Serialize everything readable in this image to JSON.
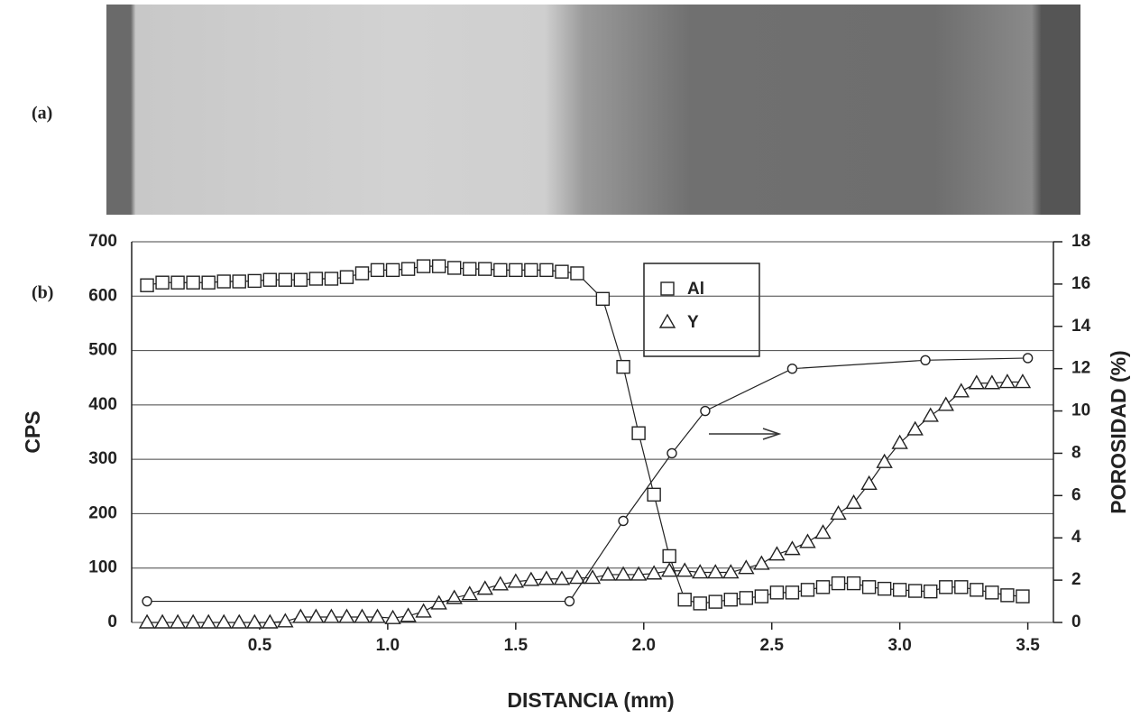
{
  "panel_labels": [
    "(a)",
    "(b)"
  ],
  "chart_data": {
    "type": "scatter",
    "xlabel": "DISTANCIA (mm)",
    "ylabel": "CPS",
    "y2label": "POROSIDAD (%)",
    "xlim": [
      0,
      3.6
    ],
    "ylim": [
      0,
      700
    ],
    "y2lim": [
      0,
      18
    ],
    "xticks": [
      0.5,
      {
        "value": 1,
        "label": "1.0"
      },
      1.5,
      {
        "value": 2,
        "label": "2.0"
      },
      2.5,
      {
        "value": 3,
        "label": "3.0"
      },
      3.5
    ],
    "yticks": [
      0,
      100,
      200,
      300,
      400,
      500,
      600,
      700
    ],
    "y2ticks": [
      0,
      2,
      4,
      6,
      8,
      10,
      12,
      14,
      16,
      18
    ],
    "grid": true,
    "legend": "upper center",
    "series": [
      {
        "name": "Al",
        "marker": "square",
        "color": "#222222",
        "x": [
          0.06,
          0.12,
          0.18,
          0.24,
          0.3,
          0.36,
          0.42,
          0.48,
          0.54,
          0.6,
          0.66,
          0.72,
          0.78,
          0.84,
          0.9,
          0.96,
          1.02,
          1.08,
          1.14,
          1.2,
          1.26,
          1.32,
          1.38,
          1.44,
          1.5,
          1.56,
          1.62,
          1.68,
          1.74,
          1.84,
          1.92,
          1.98,
          2.04,
          2.1,
          2.16,
          2.22,
          2.28,
          2.34,
          2.4,
          2.46,
          2.52,
          2.58,
          2.64,
          2.7,
          2.76,
          2.82,
          2.88,
          2.94,
          3.0,
          3.06,
          3.12,
          3.18,
          3.24,
          3.3,
          3.36,
          3.42,
          3.48
        ],
        "values": [
          620,
          625,
          625,
          625,
          625,
          627,
          627,
          628,
          630,
          630,
          630,
          632,
          632,
          635,
          642,
          648,
          648,
          650,
          655,
          655,
          652,
          650,
          650,
          648,
          648,
          648,
          648,
          645,
          642,
          595,
          470,
          348,
          235,
          122,
          42,
          35,
          38,
          42,
          45,
          48,
          55,
          55,
          60,
          65,
          72,
          72,
          65,
          62,
          60,
          58,
          57,
          65,
          65,
          60,
          55,
          50,
          48
        ]
      },
      {
        "name": "Y",
        "marker": "triangle",
        "color": "#222222",
        "x": [
          0.06,
          0.12,
          0.18,
          0.24,
          0.3,
          0.36,
          0.42,
          0.48,
          0.54,
          0.6,
          0.66,
          0.72,
          0.78,
          0.84,
          0.9,
          0.96,
          1.02,
          1.08,
          1.14,
          1.2,
          1.26,
          1.32,
          1.38,
          1.44,
          1.5,
          1.56,
          1.62,
          1.68,
          1.74,
          1.8,
          1.86,
          1.92,
          1.98,
          2.04,
          2.1,
          2.16,
          2.22,
          2.28,
          2.34,
          2.4,
          2.46,
          2.52,
          2.58,
          2.64,
          2.7,
          2.76,
          2.82,
          2.88,
          2.94,
          3.0,
          3.06,
          3.12,
          3.18,
          3.24,
          3.3,
          3.36,
          3.42,
          3.48
        ],
        "values": [
          0,
          0,
          0,
          0,
          0,
          0,
          0,
          0,
          0,
          2,
          10,
          10,
          10,
          10,
          10,
          10,
          8,
          12,
          20,
          35,
          45,
          52,
          62,
          70,
          75,
          78,
          80,
          80,
          82,
          82,
          88,
          88,
          88,
          90,
          95,
          95,
          92,
          92,
          92,
          100,
          108,
          125,
          135,
          148,
          165,
          200,
          220,
          255,
          295,
          330,
          355,
          380,
          400,
          425,
          440,
          440,
          442,
          442
        ]
      },
      {
        "marker": "circle",
        "color": "#222222",
        "axis": "y2",
        "x": [
          0.06,
          1.71,
          1.92,
          2.11,
          2.24,
          2.58,
          3.1,
          3.5
        ],
        "values": [
          1.0,
          1.0,
          4.8,
          8.0,
          10.0,
          12.0,
          12.4,
          12.5
        ]
      }
    ]
  }
}
